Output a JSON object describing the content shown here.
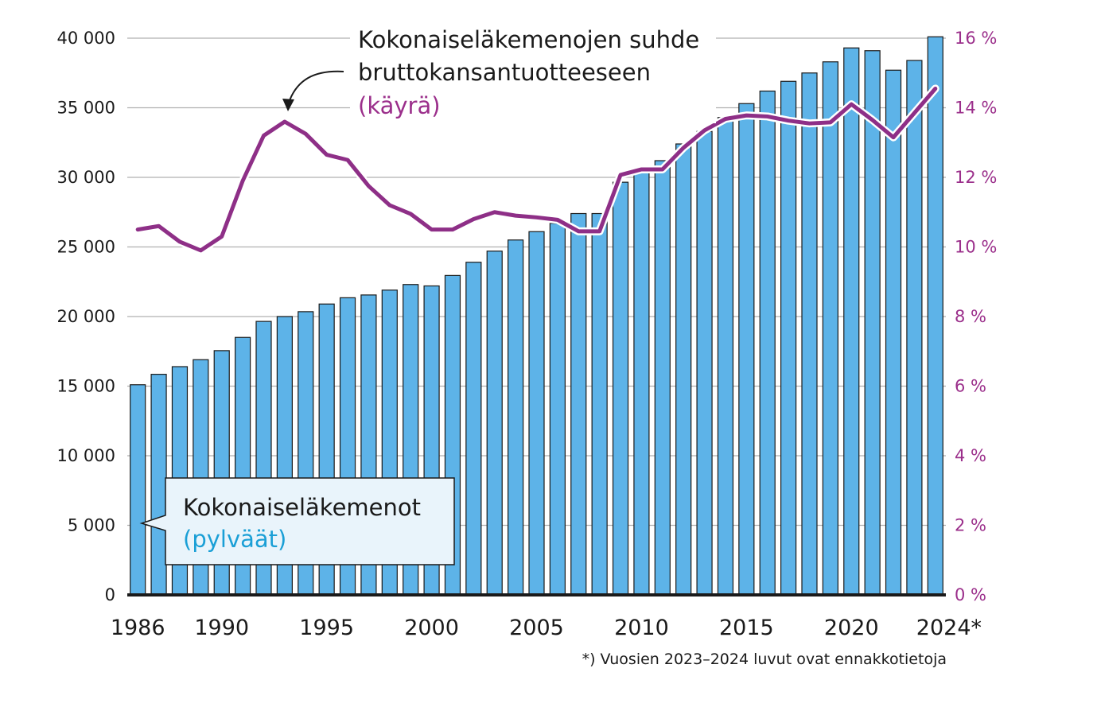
{
  "chart_data": {
    "type": "bar",
    "x": [
      1986,
      1987,
      1988,
      1989,
      1990,
      1991,
      1992,
      1993,
      1994,
      1995,
      1996,
      1997,
      1998,
      1999,
      2000,
      2001,
      2002,
      2003,
      2004,
      2005,
      2006,
      2007,
      2008,
      2009,
      2010,
      2011,
      2012,
      2013,
      2014,
      2015,
      2016,
      2017,
      2018,
      2019,
      2020,
      2021,
      2022,
      2023,
      2024
    ],
    "x_tick_labels": [
      "1986",
      "1990",
      "1995",
      "2000",
      "2005",
      "2010",
      "2015",
      "2020",
      "2024*"
    ],
    "x_tick_values": [
      1986,
      1990,
      1995,
      2000,
      2005,
      2010,
      2015,
      2020,
      2024
    ],
    "series": [
      {
        "name": "Kokonaiseläkemenot",
        "type": "bar",
        "axis": "left",
        "color": "#5db3e8",
        "values": [
          15100,
          15850,
          16400,
          16900,
          17550,
          18500,
          19650,
          20000,
          20350,
          20900,
          21350,
          21550,
          21900,
          22300,
          22200,
          22950,
          23900,
          24700,
          25500,
          26100,
          26700,
          27400,
          27400,
          29650,
          30400,
          31200,
          32400,
          33300,
          34300,
          35300,
          36200,
          36900,
          37500,
          38300,
          39300,
          39100,
          37700,
          38400,
          40100
        ]
      },
      {
        "name": "Kokonaiseläkemenojen suhde bruttokansantuotteeseen",
        "type": "line",
        "axis": "right",
        "color": "#8e2f87",
        "values": [
          10.5,
          10.6,
          10.15,
          9.9,
          10.3,
          11.9,
          13.2,
          13.6,
          13.25,
          12.65,
          12.5,
          11.75,
          11.2,
          10.95,
          10.5,
          10.5,
          10.8,
          11.0,
          10.9,
          10.85,
          10.78,
          10.45,
          10.45,
          12.07,
          12.23,
          12.23,
          12.85,
          13.35,
          13.68,
          13.78,
          13.75,
          13.63,
          13.55,
          13.58,
          14.1,
          13.65,
          13.15,
          13.85,
          14.55
        ]
      }
    ],
    "y_left": {
      "ylim": [
        0,
        40000
      ],
      "ticks": [
        0,
        5000,
        10000,
        15000,
        20000,
        25000,
        30000,
        35000,
        40000
      ],
      "tick_labels": [
        "0",
        "5 000",
        "10 000",
        "15 000",
        "20 000",
        "25 000",
        "30 000",
        "35 000",
        "40 000"
      ]
    },
    "y_right": {
      "ylim": [
        0,
        16
      ],
      "ticks": [
        0,
        2,
        4,
        6,
        8,
        10,
        12,
        14,
        16
      ],
      "tick_labels": [
        "0 %",
        "2 %",
        "4 %",
        "6 %",
        "8 %",
        "10 %",
        "12 %",
        "14 %",
        "16 %"
      ]
    },
    "grid": true,
    "annotations": {
      "line_title_1": "Kokonaiseläkemenojen suhde",
      "line_title_2": "bruttokansantuotteeseen",
      "line_title_3": "(käyrä)",
      "bars_title_1": "Kokonaiseläkemenot",
      "bars_title_2": "(pylväät)"
    },
    "footnote": "*) Vuosien 2023–2024 luvut ovat ennakkotietoja"
  },
  "colors": {
    "bar_fill": "#5db3e8",
    "bar_stroke": "#1a1a1a",
    "line": "#8e2f87",
    "right_axis_text": "#9b2f8b",
    "grid": "#b0b0b0",
    "callout_fill": "#e9f4fb"
  }
}
